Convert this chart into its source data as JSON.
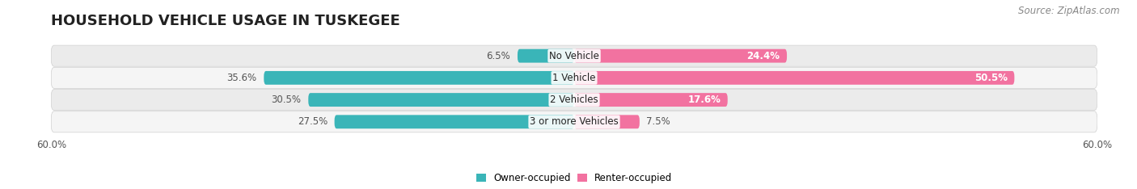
{
  "title": "HOUSEHOLD VEHICLE USAGE IN TUSKEGEE",
  "source": "Source: ZipAtlas.com",
  "categories": [
    "No Vehicle",
    "1 Vehicle",
    "2 Vehicles",
    "3 or more Vehicles"
  ],
  "owner_values": [
    6.5,
    35.6,
    30.5,
    27.5
  ],
  "renter_values": [
    24.4,
    50.5,
    17.6,
    7.5
  ],
  "owner_color": "#3ab5b8",
  "renter_color": "#f272a0",
  "owner_label": "Owner-occupied",
  "renter_label": "Renter-occupied",
  "xlim_abs": 60,
  "xtick_labels": [
    "60.0%",
    "60.0%"
  ],
  "bg_color": "#ffffff",
  "row_colors": [
    "#ebebeb",
    "#f5f5f5",
    "#ebebeb",
    "#f5f5f5"
  ],
  "title_fontsize": 13,
  "source_fontsize": 8.5,
  "bar_height": 0.62,
  "label_fontsize": 8.5,
  "cat_fontsize": 8.5,
  "value_inside_color": "#ffffff",
  "value_outside_color": "#555555"
}
